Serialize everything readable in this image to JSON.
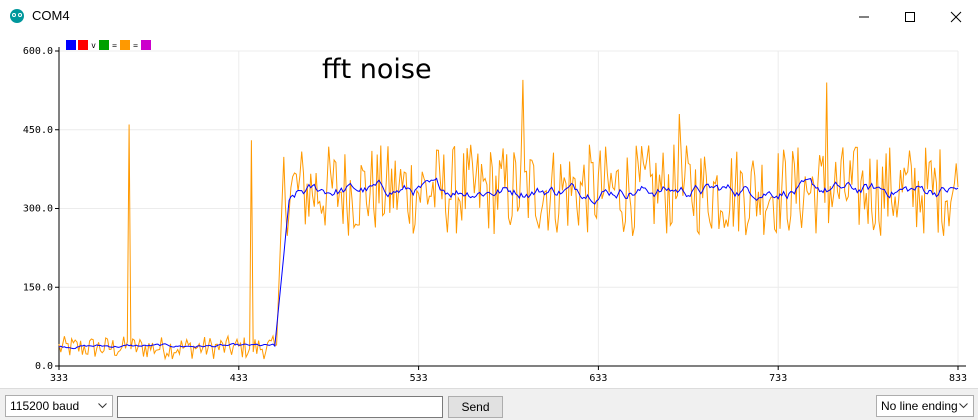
{
  "window": {
    "title": "COM4",
    "icon": "arduino-icon",
    "buttons": [
      "minimize-icon",
      "maximize-icon",
      "close-icon"
    ]
  },
  "plotter": {
    "annotation": "fft noise",
    "legend": [
      {
        "color": "#0000ff",
        "label": ""
      },
      {
        "color": "#ff0000",
        "label": "v"
      },
      {
        "color": "#00a000",
        "label": "="
      },
      {
        "color": "#ff9900",
        "label": "="
      },
      {
        "color": "#cc00cc",
        "label": ""
      }
    ]
  },
  "chart_data": {
    "type": "line",
    "xlim": [
      333,
      833
    ],
    "ylim": [
      0,
      600
    ],
    "xticks": [
      "333",
      "433",
      "533",
      "633",
      "733",
      "833"
    ],
    "yticks": [
      "0.0",
      "150.0",
      "300.0",
      "450.0",
      "600.0"
    ],
    "grid": true,
    "legend_position": "top-left",
    "series": [
      {
        "color": "#ff9900",
        "segments": [
          {
            "x": [
              333,
              454
            ],
            "base": 35,
            "amplitude": 40
          },
          {
            "x": [
              454,
              458
            ],
            "rise": [
              40,
              400
            ]
          },
          {
            "x": [
              458,
              833
            ],
            "base": 335,
            "amplitude": 110
          }
        ],
        "peaks": [
          [
            591,
            545
          ],
          [
            760,
            540
          ],
          [
            678,
            480
          ],
          [
            372,
            460
          ],
          [
            440,
            430
          ]
        ]
      },
      {
        "color": "#0000ff",
        "segments": [
          {
            "x": [
              333,
              453
            ],
            "level": 38
          },
          {
            "x": [
              453,
              462
            ],
            "rise": [
              38,
              350
            ]
          },
          {
            "x": [
              462,
              833
            ],
            "level": 335
          }
        ]
      }
    ]
  },
  "bottom": {
    "baud": "115200 baud",
    "input_value": "",
    "send_label": "Send",
    "line_ending": "No line ending"
  }
}
